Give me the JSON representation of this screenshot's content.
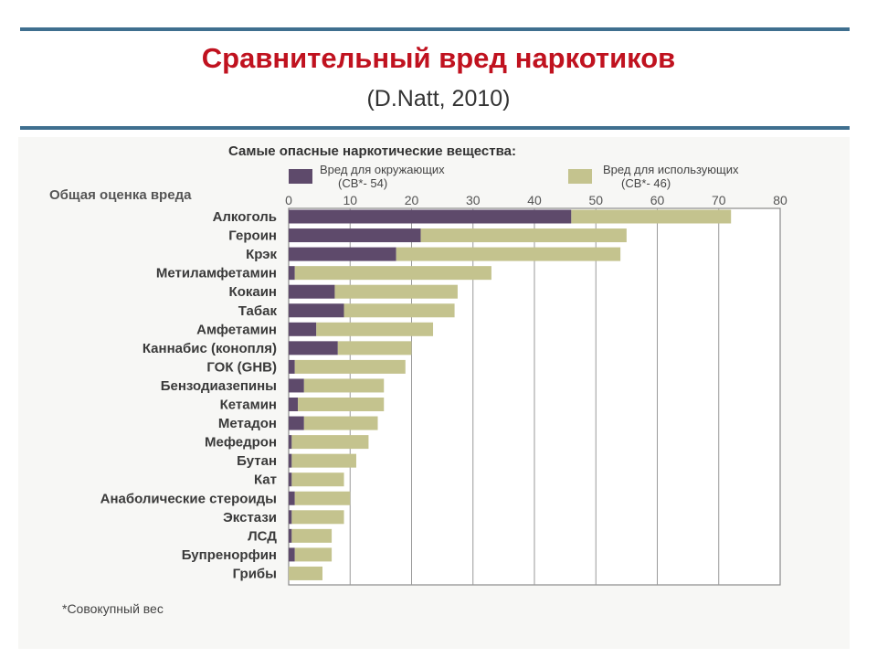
{
  "slide": {
    "title": "Сравнительный вред наркотиков",
    "subtitle": "(D.Natt, 2010)"
  },
  "chart_data": {
    "type": "bar",
    "orientation": "horizontal",
    "stacked": true,
    "title": "Самые опасные наркотические вещества:",
    "xlabel": "Общая оценка вреда",
    "xlim": [
      0,
      80
    ],
    "xticks": [
      "0",
      "10",
      "20",
      "30",
      "40",
      "50",
      "60",
      "70",
      "80"
    ],
    "categories": [
      "Алкоголь",
      "Героин",
      "Крэк",
      "Метиламфетамин",
      "Кокаин",
      "Табак",
      "Амфетамин",
      "Каннабис (конопля)",
      "ГОК (GHB)",
      "Бензодиазепины",
      "Кетамин",
      "Метадон",
      "Мефедрон",
      "Бутан",
      "Кат",
      "Анаболические стероиды",
      "Экстази",
      "ЛСД",
      "Бупренорфин",
      "Грибы"
    ],
    "series": [
      {
        "name": "Вред для окружающих",
        "weight": "(СВ*- 54)",
        "color": "#5e4a6b",
        "values": [
          46,
          21.5,
          17.5,
          1,
          7.5,
          9,
          4.5,
          8,
          1,
          2.5,
          1.5,
          2.5,
          0.5,
          0.5,
          0.5,
          1,
          0.5,
          0.5,
          1,
          0
        ]
      },
      {
        "name": "Вред для использующих",
        "weight": "(СВ*- 46)",
        "color": "#c4c38e",
        "values": [
          26,
          33.5,
          36.5,
          32,
          20,
          18,
          19,
          12,
          18,
          13,
          14,
          12,
          12.5,
          10.5,
          8.5,
          9,
          8.5,
          6.5,
          6,
          5.5
        ]
      }
    ],
    "footnote": "*Совокупный вес"
  }
}
